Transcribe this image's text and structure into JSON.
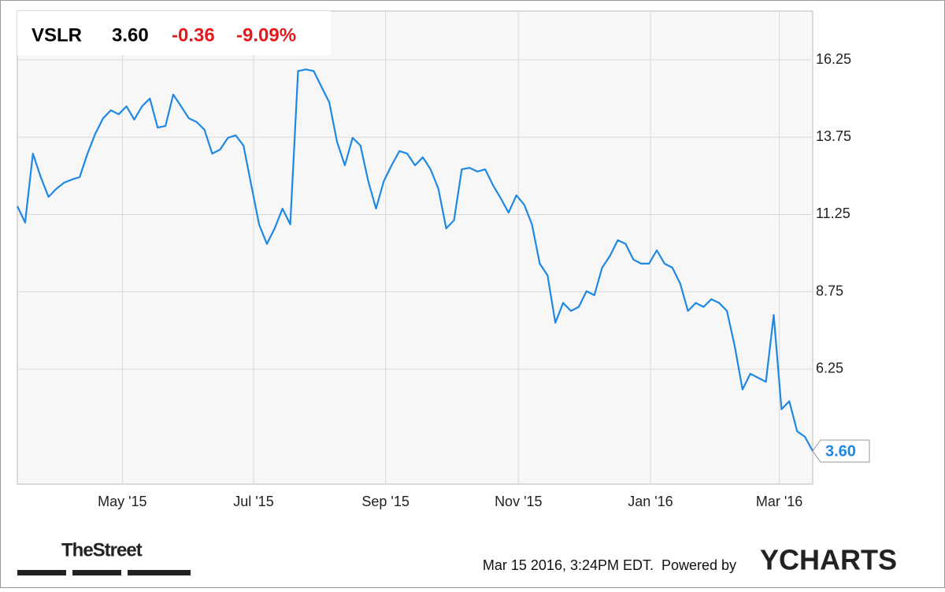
{
  "chart_data": {
    "type": "line",
    "ticker": "VSLR",
    "price": "3.60",
    "change": "-0.36",
    "change_pct": "-9.09%",
    "color": "#1e88e5",
    "ylim": [
      2.53,
      17.83
    ],
    "yticks": [
      6.25,
      8.75,
      11.25,
      13.75,
      16.25
    ],
    "xlim": [
      0,
      100
    ],
    "xticks": [
      {
        "value": 13.2,
        "label": "May '15"
      },
      {
        "value": 29.7,
        "label": "Jul '15"
      },
      {
        "value": 46.3,
        "label": "Sep '15"
      },
      {
        "value": 63,
        "label": "Nov '15"
      },
      {
        "value": 79.6,
        "label": "Jan '16"
      },
      {
        "value": 95.8,
        "label": "Mar '16"
      }
    ],
    "grid": true,
    "values": [
      11.52,
      10.99,
      13.22,
      12.46,
      11.82,
      12.08,
      12.28,
      12.38,
      12.46,
      13.22,
      13.86,
      14.36,
      14.62,
      14.49,
      14.75,
      14.32,
      14.75,
      15.0,
      14.06,
      14.11,
      15.13,
      14.75,
      14.36,
      14.24,
      13.99,
      13.22,
      13.35,
      13.73,
      13.81,
      13.48,
      12.2,
      10.93,
      10.3,
      10.8,
      11.44,
      10.93,
      15.89,
      15.94,
      15.89,
      15.38,
      14.88,
      13.6,
      12.84,
      13.73,
      13.48,
      12.33,
      11.44,
      12.33,
      12.84,
      13.3,
      13.22,
      12.84,
      13.1,
      12.71,
      12.08,
      10.8,
      11.06,
      12.71,
      12.76,
      12.64,
      12.71,
      12.2,
      11.77,
      11.31,
      11.87,
      11.57,
      10.93,
      9.66,
      9.28,
      7.75,
      8.39,
      8.13,
      8.26,
      8.77,
      8.64,
      9.53,
      9.91,
      10.42,
      10.3,
      9.79,
      9.66,
      9.66,
      10.09,
      9.66,
      9.53,
      9.02,
      8.13,
      8.39,
      8.26,
      8.51,
      8.39,
      8.13,
      6.99,
      5.59,
      6.1,
      5.97,
      5.84,
      8.0,
      4.95,
      5.21,
      4.24,
      4.06,
      3.6
    ],
    "source_logo": "TheStreet",
    "timestamp": "Mar 15 2016, 3:24PM EDT.",
    "powered_by": "Powered by",
    "brand": "YCHARTS"
  }
}
